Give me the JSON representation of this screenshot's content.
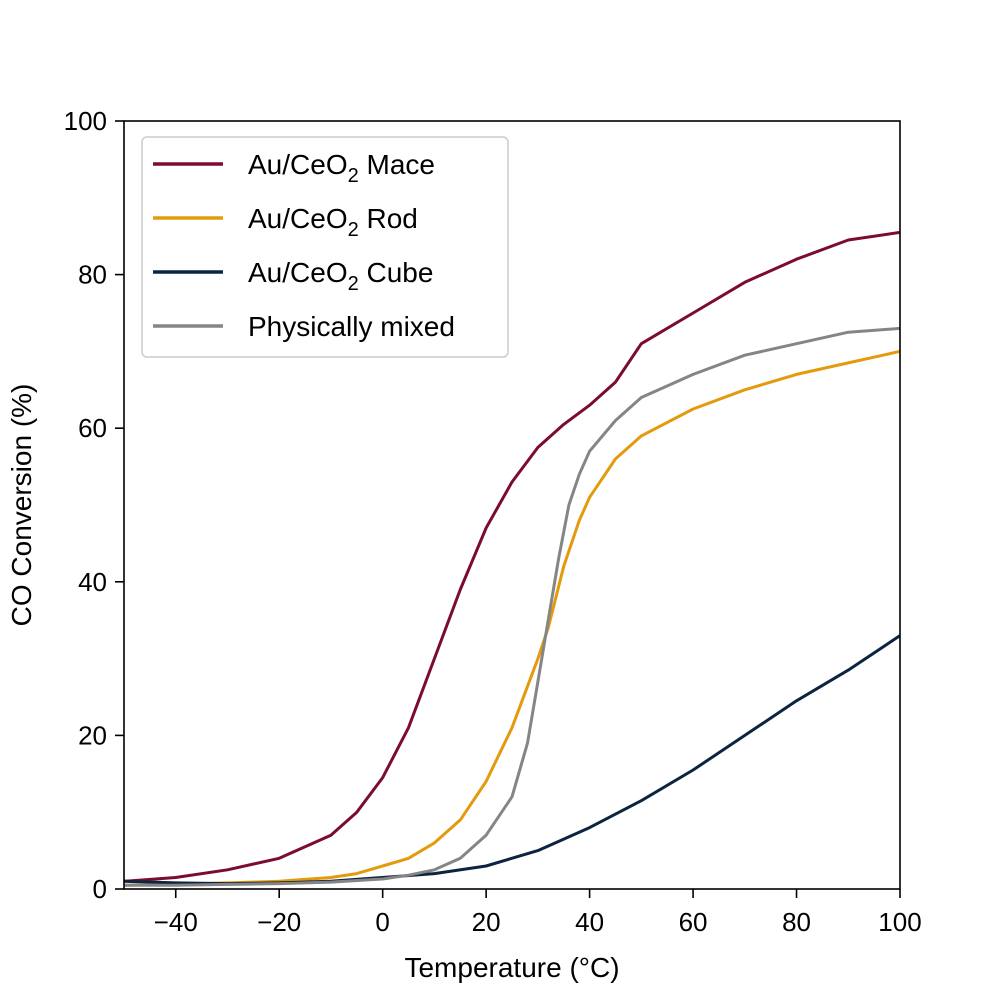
{
  "chart_data": {
    "type": "line",
    "xlabel": "Temperature (°C)",
    "ylabel": "CO Conversion (%)",
    "xlim": [
      -50,
      100
    ],
    "ylim": [
      0,
      100
    ],
    "xticks": [
      -40,
      -20,
      0,
      20,
      40,
      60,
      80,
      100
    ],
    "yticks": [
      0,
      20,
      40,
      60,
      80,
      100
    ],
    "xtick_labels": [
      "−40",
      "−20",
      "0",
      "20",
      "40",
      "60",
      "80",
      "100"
    ],
    "ytick_labels": [
      "0",
      "20",
      "40",
      "60",
      "80",
      "100"
    ],
    "grid": false,
    "legend": {
      "position": "upper-left",
      "entries": [
        {
          "base": "Au/CeO",
          "sub": "2",
          "suffix": " Mace"
        },
        {
          "base": "Au/CeO",
          "sub": "2",
          "suffix": " Rod"
        },
        {
          "base": "Au/CeO",
          "sub": "2",
          "suffix": " Cube"
        },
        {
          "base": "Physically mixed",
          "sub": "",
          "suffix": ""
        }
      ]
    },
    "series": [
      {
        "name": "Au/CeO2 Mace",
        "color": "#7b0a35",
        "x": [
          -50,
          -40,
          -30,
          -20,
          -10,
          -5,
          0,
          5,
          10,
          15,
          20,
          25,
          30,
          35,
          40,
          45,
          50,
          60,
          70,
          80,
          90,
          100
        ],
        "y": [
          1.0,
          1.5,
          2.5,
          4.0,
          7.0,
          10.0,
          14.5,
          21.0,
          30.0,
          39.0,
          47.0,
          53.0,
          57.5,
          60.5,
          63.0,
          66.0,
          71.0,
          75.0,
          79.0,
          82.0,
          84.5,
          85.5
        ]
      },
      {
        "name": "Au/CeO2 Rod",
        "color": "#e39b0d",
        "x": [
          -50,
          -40,
          -30,
          -20,
          -10,
          -5,
          0,
          5,
          10,
          15,
          20,
          25,
          30,
          32,
          35,
          38,
          40,
          45,
          50,
          60,
          70,
          80,
          90,
          100
        ],
        "y": [
          0.5,
          0.6,
          0.8,
          1.0,
          1.5,
          2.0,
          3.0,
          4.0,
          6.0,
          9.0,
          14.0,
          21.0,
          30.0,
          34.0,
          42.0,
          48.0,
          51.0,
          56.0,
          59.0,
          62.5,
          65.0,
          67.0,
          68.5,
          70.0
        ]
      },
      {
        "name": "Au/CeO2 Cube",
        "color": "#0b2440",
        "x": [
          -50,
          -40,
          -30,
          -20,
          -10,
          0,
          10,
          20,
          30,
          40,
          50,
          60,
          70,
          80,
          90,
          100
        ],
        "y": [
          1.0,
          0.8,
          0.7,
          0.8,
          1.0,
          1.5,
          2.0,
          3.0,
          5.0,
          8.0,
          11.5,
          15.5,
          20.0,
          24.5,
          28.5,
          33.0
        ]
      },
      {
        "name": "Physically mixed",
        "color": "#858585",
        "x": [
          -50,
          -40,
          -30,
          -20,
          -10,
          0,
          5,
          10,
          15,
          20,
          25,
          28,
          30,
          32,
          34,
          36,
          38,
          40,
          45,
          50,
          60,
          70,
          80,
          90,
          100
        ],
        "y": [
          0.5,
          0.5,
          0.6,
          0.7,
          0.9,
          1.3,
          1.8,
          2.5,
          4.0,
          7.0,
          12.0,
          19.0,
          27.0,
          35.0,
          43.0,
          50.0,
          54.0,
          57.0,
          61.0,
          64.0,
          67.0,
          69.5,
          71.0,
          72.5,
          73.0
        ]
      }
    ]
  }
}
